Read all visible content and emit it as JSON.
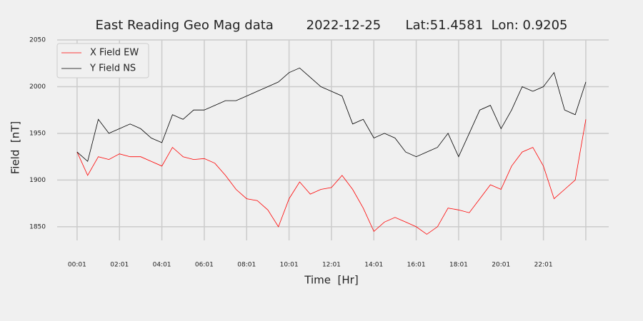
{
  "chart_data": {
    "type": "line",
    "title": "East Reading Geo Mag data        2022-12-25      Lat:51.4581  Lon: 0.9205",
    "xlabel": "Time  [Hr]",
    "ylabel": "Field  [nT]",
    "x": [
      0,
      0.5,
      1,
      1.5,
      2,
      2.5,
      3,
      3.5,
      4,
      4.5,
      5,
      5.5,
      6,
      6.5,
      7,
      7.5,
      8,
      8.5,
      9,
      9.5,
      10,
      10.5,
      11,
      11.5,
      12,
      12.5,
      13,
      13.5,
      14,
      14.5,
      15,
      15.5,
      16,
      16.5,
      17,
      17.5,
      18,
      18.5,
      19,
      19.5,
      20,
      20.5,
      21,
      21.5,
      22,
      22.5,
      23,
      23.5,
      24
    ],
    "series": [
      {
        "name": "X Field EW",
        "color": "#ff0000",
        "values": [
          1930,
          1905,
          1925,
          1922,
          1928,
          1925,
          1925,
          1920,
          1915,
          1935,
          1925,
          1922,
          1923,
          1918,
          1905,
          1890,
          1880,
          1878,
          1868,
          1850,
          1880,
          1898,
          1885,
          1890,
          1892,
          1905,
          1890,
          1870,
          1845,
          1855,
          1860,
          1855,
          1850,
          1842,
          1850,
          1870,
          1868,
          1865,
          1880,
          1895,
          1890,
          1915,
          1930,
          1935,
          1915,
          1880,
          1890,
          1900,
          1965
        ]
      },
      {
        "name": "Y Field NS",
        "color": "#000000",
        "values": [
          1930,
          1920,
          1965,
          1950,
          1955,
          1960,
          1955,
          1945,
          1940,
          1970,
          1965,
          1975,
          1975,
          1980,
          1985,
          1985,
          1990,
          1995,
          2000,
          2005,
          2015,
          2020,
          2010,
          2000,
          1995,
          1990,
          1960,
          1965,
          1945,
          1950,
          1945,
          1930,
          1925,
          1930,
          1935,
          1950,
          1925,
          1950,
          1975,
          1980,
          1955,
          1975,
          2000,
          1995,
          2000,
          2015,
          1975,
          1970,
          2005
        ]
      }
    ],
    "xlim": [
      -0.94,
      25.08
    ],
    "xticks": [
      {
        "value": 0,
        "label": "00:01"
      },
      {
        "value": 2,
        "label": "02:01"
      },
      {
        "value": 4,
        "label": "04:01"
      },
      {
        "value": 6,
        "label": "06:01"
      },
      {
        "value": 8,
        "label": "08:01"
      },
      {
        "value": 10,
        "label": "10:01"
      },
      {
        "value": 12,
        "label": "12:01"
      },
      {
        "value": 14,
        "label": "14:01"
      },
      {
        "value": 16,
        "label": "16:01"
      },
      {
        "value": 18,
        "label": "18:01"
      },
      {
        "value": 20,
        "label": "20:01"
      },
      {
        "value": 22,
        "label": "22:01"
      },
      {
        "value": 24,
        "label": null
      }
    ],
    "ylim": [
      1835.4,
      2050
    ],
    "yticks": [
      1850,
      1900,
      1950,
      2000,
      2050
    ],
    "grid": true,
    "legend": "upper left"
  }
}
